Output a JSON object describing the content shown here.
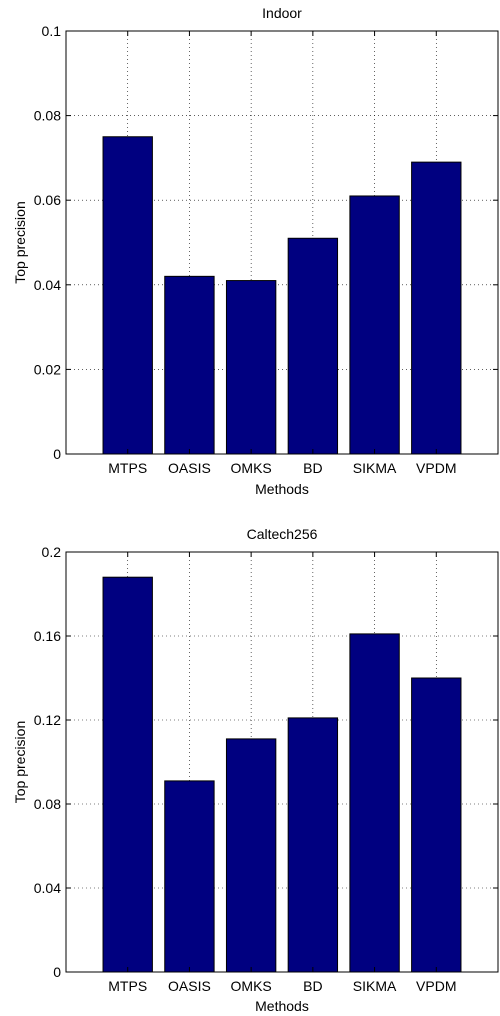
{
  "bar_color": "#000080",
  "chart_data": [
    {
      "type": "bar",
      "title": "Indoor",
      "xlabel": "Methods",
      "ylabel": "Top precision",
      "categories": [
        "MTPS",
        "OASIS",
        "OMKS",
        "BD",
        "SIKMA",
        "VPDM"
      ],
      "values": [
        0.075,
        0.042,
        0.041,
        0.051,
        0.061,
        0.069
      ],
      "ylim": [
        0,
        0.1
      ],
      "yticks": [
        0,
        0.02,
        0.04,
        0.06,
        0.08,
        0.1
      ],
      "ytick_labels": [
        "0",
        "0.02",
        "0.04",
        "0.06",
        "0.08",
        "0.1"
      ],
      "grid": true
    },
    {
      "type": "bar",
      "title": "Caltech256",
      "xlabel": "Methods",
      "ylabel": "Top precision",
      "categories": [
        "MTPS",
        "OASIS",
        "OMKS",
        "BD",
        "SIKMA",
        "VPDM"
      ],
      "values": [
        0.188,
        0.091,
        0.111,
        0.121,
        0.161,
        0.14
      ],
      "ylim": [
        0,
        0.2
      ],
      "yticks": [
        0,
        0.04,
        0.08,
        0.12,
        0.16,
        0.2
      ],
      "ytick_labels": [
        "0",
        "0.04",
        "0.08",
        "0.12",
        "0.16",
        "0.2"
      ],
      "grid": true
    }
  ]
}
